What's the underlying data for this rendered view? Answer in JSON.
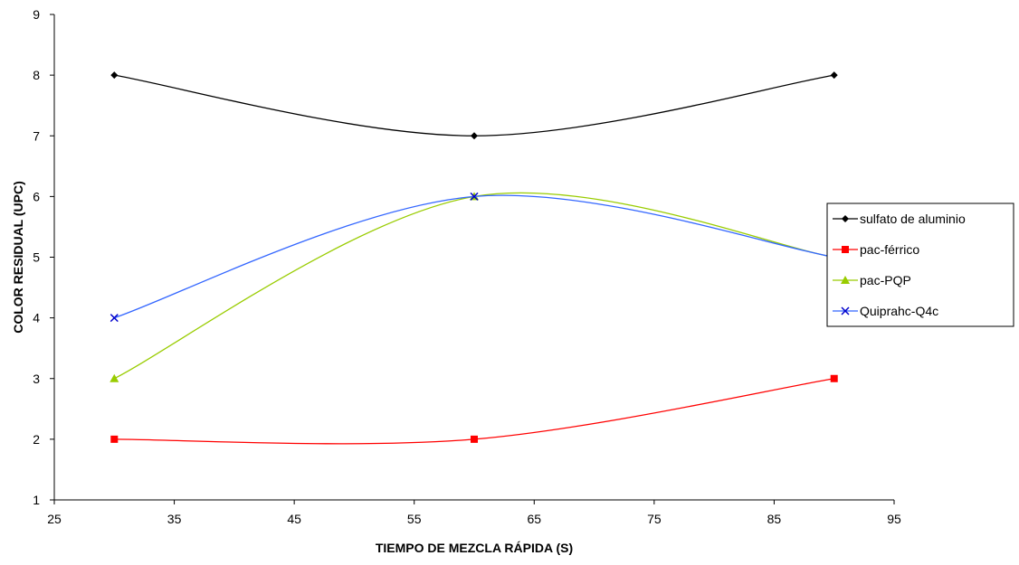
{
  "chart_data": {
    "type": "line",
    "title": "",
    "xlabel": "TIEMPO DE MEZCLA RÁPIDA (S)",
    "ylabel": "COLOR RESIDUAL  (UPC)",
    "xlim": [
      25,
      95
    ],
    "ylim": [
      1,
      9
    ],
    "x_ticks": [
      25,
      35,
      45,
      55,
      65,
      75,
      85,
      95
    ],
    "y_ticks": [
      1,
      2,
      3,
      4,
      5,
      6,
      7,
      8,
      9
    ],
    "x_tick_labels": [
      "25",
      "35",
      "45",
      "55",
      "65",
      "75",
      "85",
      "95"
    ],
    "y_tick_labels": [
      "1",
      "2",
      "3",
      "4",
      "5",
      "6",
      "7",
      "8",
      "9"
    ],
    "grid": false,
    "smooth": true,
    "legend_position": "right",
    "x": [
      30,
      60,
      90
    ],
    "series": [
      {
        "name": "sulfato de aluminio",
        "values": [
          8,
          7,
          8
        ],
        "color": "#000000",
        "marker": "diamond"
      },
      {
        "name": "pac-férrico",
        "values": [
          2,
          2,
          3
        ],
        "color": "#ff0000",
        "marker": "square"
      },
      {
        "name": "pac-PQP",
        "values": [
          3,
          6,
          5
        ],
        "color": "#99cc00",
        "marker": "triangle"
      },
      {
        "name": "Quiprahc-Q4c",
        "values": [
          4,
          6,
          5
        ],
        "color": "#0000cc",
        "line_color": "#3366ff",
        "marker": "x"
      }
    ]
  }
}
